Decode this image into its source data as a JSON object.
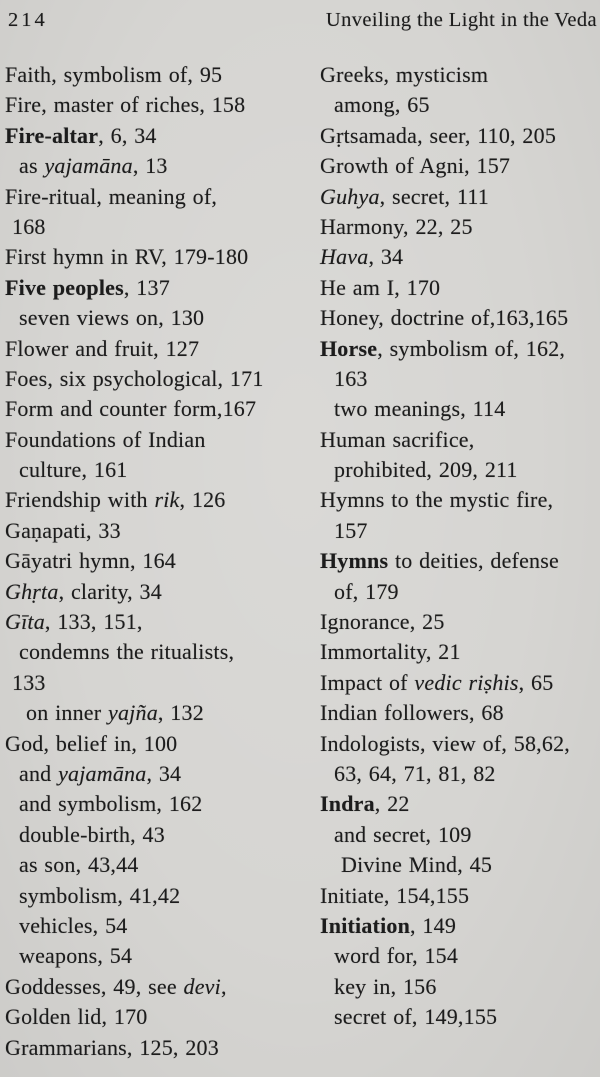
{
  "page": {
    "number": "214",
    "running_title": "Unveiling the Light in the Veda",
    "paper_color": "#d6d5d2",
    "ink_color": "#1c1c1c"
  },
  "index": {
    "left_column": [
      {
        "ind": 0,
        "runs": [
          [
            "Faith, symbolism of, 95",
            ""
          ]
        ]
      },
      {
        "ind": 0,
        "runs": [
          [
            "Fire, master of riches, 158",
            ""
          ]
        ]
      },
      {
        "ind": 0,
        "runs": [
          [
            "Fire-altar",
            "b"
          ],
          [
            ", 6, 34",
            ""
          ]
        ]
      },
      {
        "ind": 2,
        "runs": [
          [
            "as ",
            ""
          ],
          [
            "yajamāna",
            "i"
          ],
          [
            ", 13",
            ""
          ]
        ]
      },
      {
        "ind": 0,
        "runs": [
          [
            "Fire-ritual, meaning of,",
            ""
          ]
        ]
      },
      {
        "ind": 1,
        "runs": [
          [
            "168",
            ""
          ]
        ]
      },
      {
        "ind": 0,
        "runs": [
          [
            "First hymn in RV, 179-180",
            ""
          ]
        ]
      },
      {
        "ind": 0,
        "runs": [
          [
            "Five peoples",
            "b"
          ],
          [
            ", 137",
            ""
          ]
        ]
      },
      {
        "ind": 2,
        "runs": [
          [
            "seven views on, 130",
            ""
          ]
        ]
      },
      {
        "ind": 0,
        "runs": [
          [
            "Flower and fruit, 127",
            ""
          ]
        ]
      },
      {
        "ind": 0,
        "runs": [
          [
            "Foes, six psychological, 171",
            ""
          ]
        ]
      },
      {
        "ind": 0,
        "runs": [
          [
            "Form and counter form,167",
            ""
          ]
        ]
      },
      {
        "ind": 0,
        "runs": [
          [
            "Foundations of Indian",
            ""
          ]
        ]
      },
      {
        "ind": 2,
        "runs": [
          [
            "culture, 161",
            ""
          ]
        ]
      },
      {
        "ind": 0,
        "runs": [
          [
            "Friendship with ",
            ""
          ],
          [
            "rik",
            "i"
          ],
          [
            ", 126",
            ""
          ]
        ]
      },
      {
        "ind": 0,
        "runs": [
          [
            "Gaṇapati, 33",
            ""
          ]
        ]
      },
      {
        "ind": 0,
        "runs": [
          [
            "Gāyatri hymn, 164",
            ""
          ]
        ]
      },
      {
        "ind": 0,
        "runs": [
          [
            "Ghṛta",
            "i"
          ],
          [
            ", clarity, 34",
            ""
          ]
        ]
      },
      {
        "ind": 0,
        "runs": [
          [
            "Gīta",
            "i"
          ],
          [
            ", 133, 151,",
            ""
          ]
        ]
      },
      {
        "ind": 2,
        "runs": [
          [
            "condemns the ritualists,",
            ""
          ]
        ]
      },
      {
        "ind": 1,
        "runs": [
          [
            "133",
            ""
          ]
        ]
      },
      {
        "ind": 3,
        "runs": [
          [
            "on inner ",
            ""
          ],
          [
            "yajña",
            "i"
          ],
          [
            ", 132",
            ""
          ]
        ]
      },
      {
        "ind": 0,
        "runs": [
          [
            "God, belief in, 100",
            ""
          ]
        ]
      },
      {
        "ind": 2,
        "runs": [
          [
            "and ",
            ""
          ],
          [
            "yajamāna",
            "i"
          ],
          [
            ", 34",
            ""
          ]
        ]
      },
      {
        "ind": 2,
        "runs": [
          [
            "and symbolism, 162",
            ""
          ]
        ]
      },
      {
        "ind": 2,
        "runs": [
          [
            "double-birth, 43",
            ""
          ]
        ]
      },
      {
        "ind": 2,
        "runs": [
          [
            "as son, 43,44",
            ""
          ]
        ]
      },
      {
        "ind": 2,
        "runs": [
          [
            "symbolism, 41,42",
            ""
          ]
        ]
      },
      {
        "ind": 2,
        "runs": [
          [
            "vehicles, 54",
            ""
          ]
        ]
      },
      {
        "ind": 2,
        "runs": [
          [
            "weapons, 54",
            ""
          ]
        ]
      },
      {
        "ind": 0,
        "runs": [
          [
            "Goddesses, 49, see ",
            ""
          ],
          [
            "devi",
            "i"
          ],
          [
            ",",
            ""
          ]
        ]
      },
      {
        "ind": 0,
        "runs": [
          [
            "Golden lid, 170",
            ""
          ]
        ]
      },
      {
        "ind": 0,
        "runs": [
          [
            "Grammarians, 125, 203",
            ""
          ]
        ]
      }
    ],
    "right_column": [
      {
        "ind": 0,
        "runs": [
          [
            "Greeks, mysticism",
            ""
          ]
        ]
      },
      {
        "ind": 2,
        "runs": [
          [
            "among, 65",
            ""
          ]
        ]
      },
      {
        "ind": 0,
        "runs": [
          [
            "Gṛtsamada, seer, 110, 205",
            ""
          ]
        ]
      },
      {
        "ind": 0,
        "runs": [
          [
            "Growth of Agni, 157",
            ""
          ]
        ]
      },
      {
        "ind": 0,
        "runs": [
          [
            "Guhya",
            "i"
          ],
          [
            ", secret, 111",
            ""
          ]
        ]
      },
      {
        "ind": 0,
        "runs": [
          [
            "Harmony, 22, 25",
            ""
          ]
        ]
      },
      {
        "ind": 0,
        "runs": [
          [
            "Hava",
            "i"
          ],
          [
            ", 34",
            ""
          ]
        ]
      },
      {
        "ind": 0,
        "runs": [
          [
            "He am I, 170",
            ""
          ]
        ]
      },
      {
        "ind": 0,
        "runs": [
          [
            "Honey, doctrine of,163,165",
            ""
          ]
        ]
      },
      {
        "ind": 0,
        "runs": [
          [
            "Horse",
            "b"
          ],
          [
            ", symbolism of, 162,",
            ""
          ]
        ]
      },
      {
        "ind": 2,
        "runs": [
          [
            "163",
            ""
          ]
        ]
      },
      {
        "ind": 2,
        "runs": [
          [
            "two meanings, 114",
            ""
          ]
        ]
      },
      {
        "ind": 0,
        "runs": [
          [
            "Human sacrifice,",
            ""
          ]
        ]
      },
      {
        "ind": 2,
        "runs": [
          [
            "prohibited, 209, 211",
            ""
          ]
        ]
      },
      {
        "ind": 0,
        "runs": [
          [
            "Hymns to the mystic fire,",
            ""
          ]
        ]
      },
      {
        "ind": 2,
        "runs": [
          [
            "157",
            ""
          ]
        ]
      },
      {
        "ind": 0,
        "runs": [
          [
            "Hymns",
            "b"
          ],
          [
            " to deities, defense",
            ""
          ]
        ]
      },
      {
        "ind": 2,
        "runs": [
          [
            "of, 179",
            ""
          ]
        ]
      },
      {
        "ind": 0,
        "runs": [
          [
            "Ignorance, 25",
            ""
          ]
        ]
      },
      {
        "ind": 0,
        "runs": [
          [
            "Immortality, 21",
            ""
          ]
        ]
      },
      {
        "ind": 0,
        "runs": [
          [
            "Impact of ",
            ""
          ],
          [
            "vedic riṣhis",
            "i"
          ],
          [
            ", 65",
            ""
          ]
        ]
      },
      {
        "ind": 0,
        "runs": [
          [
            "Indian followers, 68",
            ""
          ]
        ]
      },
      {
        "ind": 0,
        "runs": [
          [
            "Indologists, view of, 58,62,",
            ""
          ]
        ]
      },
      {
        "ind": 2,
        "runs": [
          [
            "63, 64, 71, 81, 82",
            ""
          ]
        ]
      },
      {
        "ind": 0,
        "runs": [
          [
            "Indra",
            "b"
          ],
          [
            ", 22",
            ""
          ]
        ]
      },
      {
        "ind": 2,
        "runs": [
          [
            "and secret, 109",
            ""
          ]
        ]
      },
      {
        "ind": 3,
        "runs": [
          [
            "Divine Mind, 45",
            ""
          ]
        ]
      },
      {
        "ind": 0,
        "runs": [
          [
            "Initiate, 154,155",
            ""
          ]
        ]
      },
      {
        "ind": 0,
        "runs": [
          [
            "Initiation",
            "b"
          ],
          [
            ", 149",
            ""
          ]
        ]
      },
      {
        "ind": 2,
        "runs": [
          [
            "word for, 154",
            ""
          ]
        ]
      },
      {
        "ind": 2,
        "runs": [
          [
            "key in, 156",
            ""
          ]
        ]
      },
      {
        "ind": 2,
        "runs": [
          [
            "secret of, 149,155",
            ""
          ]
        ]
      }
    ]
  }
}
